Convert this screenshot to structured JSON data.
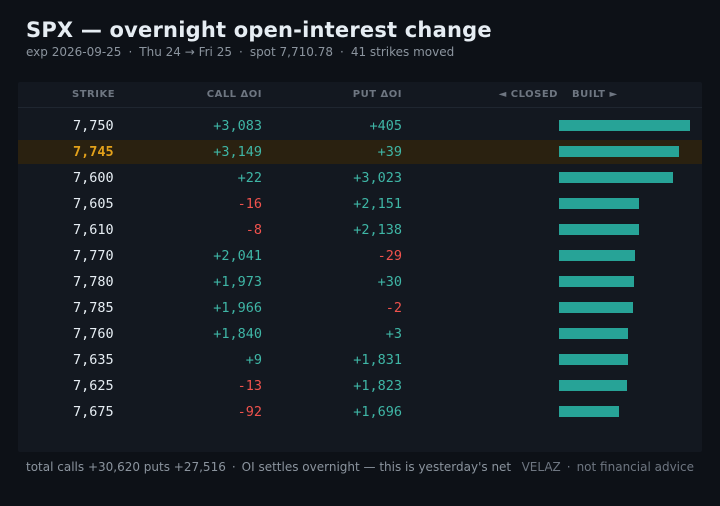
{
  "header": {
    "title": "SPX — overnight open-interest change",
    "expiry": "exp 2026-09-25",
    "dates": "Thu 24 → Fri 25",
    "spot": "spot 7,710.78",
    "strikes_moved": "41 strikes moved"
  },
  "table": {
    "columns": {
      "strike": "STRIKE",
      "call": "CALL ΔOI",
      "put": "PUT ΔOI",
      "closed": "◄ CLOSED",
      "built": "BUILT ►"
    },
    "rows": [
      {
        "strike": "7,750",
        "call": "+3,083",
        "put": "+405",
        "total": 3488,
        "highlight": false
      },
      {
        "strike": "7,745",
        "call": "+3,149",
        "put": "+39",
        "total": 3188,
        "highlight": true
      },
      {
        "strike": "7,600",
        "call": "+22",
        "put": "+3,023",
        "total": 3045,
        "highlight": false
      },
      {
        "strike": "7,605",
        "call": "-16",
        "put": "+2,151",
        "total": 2135,
        "highlight": false
      },
      {
        "strike": "7,610",
        "call": "-8",
        "put": "+2,138",
        "total": 2130,
        "highlight": false
      },
      {
        "strike": "7,770",
        "call": "+2,041",
        "put": "-29",
        "total": 2012,
        "highlight": false
      },
      {
        "strike": "7,780",
        "call": "+1,973",
        "put": "+30",
        "total": 2003,
        "highlight": false
      },
      {
        "strike": "7,785",
        "call": "+1,966",
        "put": "-2",
        "total": 1964,
        "highlight": false
      },
      {
        "strike": "7,760",
        "call": "+1,840",
        "put": "+3",
        "total": 1843,
        "highlight": false
      },
      {
        "strike": "7,635",
        "call": "+9",
        "put": "+1,831",
        "total": 1840,
        "highlight": false
      },
      {
        "strike": "7,625",
        "call": "-13",
        "put": "+1,823",
        "total": 1810,
        "highlight": false
      },
      {
        "strike": "7,675",
        "call": "-92",
        "put": "+1,696",
        "total": 1604,
        "highlight": false
      }
    ]
  },
  "footer": {
    "totals": "total  calls +30,620   puts +27,516",
    "note": "OI settles overnight — this is yesterday's net",
    "brand": "VELAZ",
    "disclaimer": "not financial advice"
  },
  "colors": {
    "positive": "#3fb6a6",
    "negative": "#f0524d",
    "bar": "#27a397",
    "highlight_row": "#2a2110",
    "highlight_strike": "#e3a11a"
  }
}
